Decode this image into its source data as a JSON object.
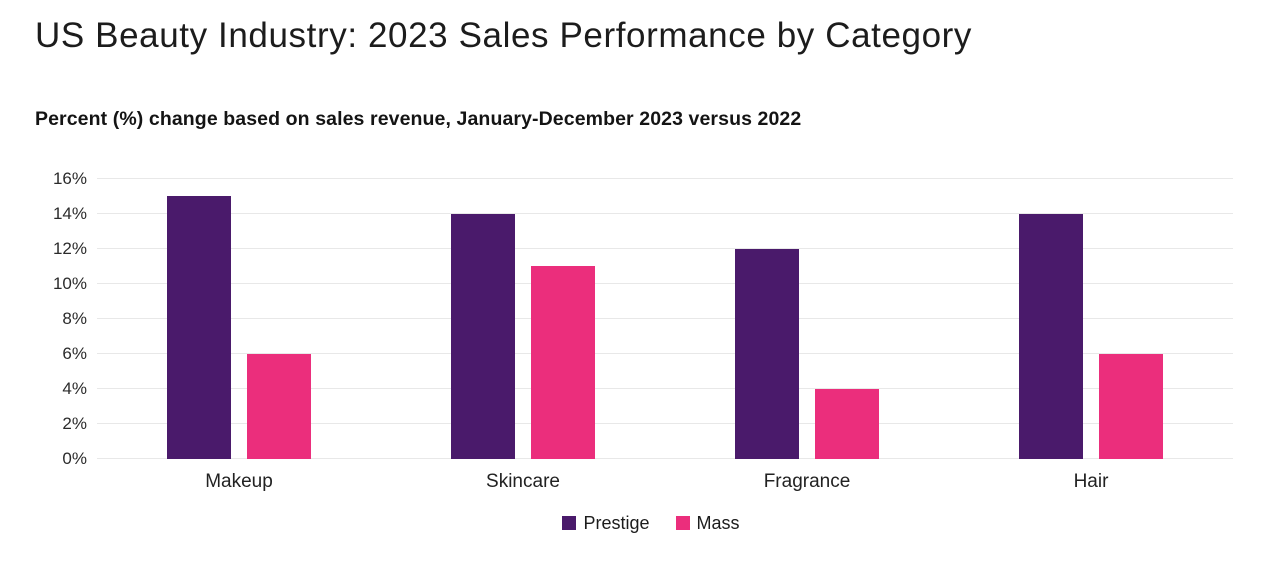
{
  "title": "US Beauty Industry: 2023 Sales Performance by Category",
  "subtitle": "Percent (%) change based on sales revenue, January-December 2023 versus 2022",
  "chart_data": {
    "type": "bar",
    "categories": [
      "Makeup",
      "Skincare",
      "Fragrance",
      "Hair"
    ],
    "series": [
      {
        "name": "Prestige",
        "color": "#4A1A6B",
        "values": [
          15,
          14,
          12,
          14
        ]
      },
      {
        "name": "Mass",
        "color": "#EB2E7C",
        "values": [
          6,
          11,
          4,
          6
        ]
      }
    ],
    "title": "US Beauty Industry: 2023 Sales Performance by Category",
    "subtitle": "Percent (%) change based on sales revenue, January-December 2023 versus 2022",
    "xlabel": "",
    "ylabel": "",
    "ylim": [
      0,
      16
    ],
    "ytick_step": 2,
    "ytick_suffix": "%",
    "grid": true,
    "legend_position": "bottom"
  },
  "colors": {
    "background": "#ffffff",
    "grid": "#e8e8e8",
    "text": "#1c1c1c",
    "prestige": "#4A1A6B",
    "mass": "#EB2E7C"
  }
}
